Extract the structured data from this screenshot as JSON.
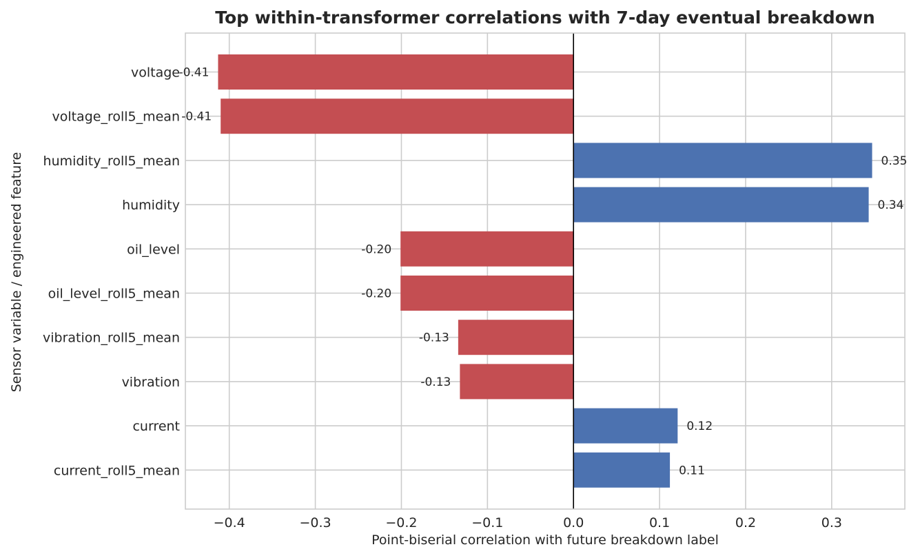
{
  "chart_data": {
    "type": "bar",
    "orientation": "horizontal",
    "title": "Top within-transformer correlations with 7-day eventual breakdown",
    "xlabel": "Point-biserial correlation with future breakdown label",
    "ylabel": "Sensor variable / engineered feature",
    "categories": [
      "voltage",
      "voltage_roll5_mean",
      "humidity_roll5_mean",
      "humidity",
      "oil_level",
      "oil_level_roll5_mean",
      "vibration_roll5_mean",
      "vibration",
      "current",
      "current_roll5_mean"
    ],
    "values": [
      -0.413,
      -0.41,
      0.347,
      0.343,
      -0.201,
      -0.201,
      -0.134,
      -0.132,
      0.121,
      0.112
    ],
    "data_labels": [
      "-0.41",
      "-0.41",
      "0.35",
      "0.34",
      "-0.20",
      "-0.20",
      "-0.13",
      "-0.13",
      "0.12",
      "0.11"
    ],
    "xticks": [
      -0.4,
      -0.3,
      -0.2,
      -0.1,
      0.0,
      0.1,
      0.2,
      0.3
    ],
    "xtick_labels": [
      "−0.4",
      "−0.3",
      "−0.2",
      "−0.1",
      "0.0",
      "0.1",
      "0.2",
      "0.3"
    ],
    "xlim": [
      -0.451,
      0.385
    ],
    "grid": true,
    "colors": {
      "positive": "#4c72b0",
      "negative": "#c44e52",
      "grid": "#cccccc",
      "zero_line": "#000000",
      "text": "#262626"
    }
  }
}
